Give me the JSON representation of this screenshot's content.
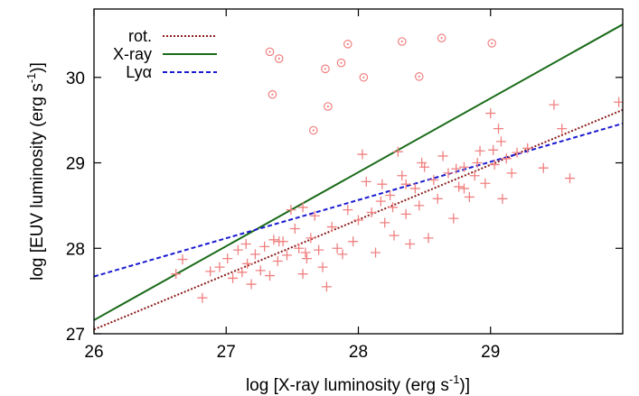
{
  "chart_data": {
    "type": "scatter",
    "xlabel_main": "log [X-ray luminosity (erg s",
    "xlabel_sup": "-1",
    "xlabel_tail": ")]",
    "ylabel_main": "log [EUV luminosity (erg s",
    "ylabel_sup": "-1",
    "ylabel_tail": ")]",
    "xlim": [
      26,
      30
    ],
    "ylim": [
      27,
      30.8
    ],
    "xticks": [
      {
        "value": 26,
        "label": "26"
      },
      {
        "value": 27,
        "label": "27"
      },
      {
        "value": 28,
        "label": "28"
      },
      {
        "value": 29,
        "label": "29"
      }
    ],
    "yticks": [
      {
        "value": 27,
        "label": "27"
      },
      {
        "value": 28,
        "label": "28"
      },
      {
        "value": 29,
        "label": "29"
      },
      {
        "value": 30,
        "label": "30"
      }
    ],
    "legend_position": "top-left",
    "lines": [
      {
        "name": "rot.",
        "color": "#8b1a1a",
        "dash": "dotted",
        "x": [
          26,
          30
        ],
        "y": [
          27.05,
          29.62
        ]
      },
      {
        "name": "X-ray",
        "color": "#1a6b1a",
        "dash": "solid",
        "x": [
          26,
          30
        ],
        "y": [
          27.16,
          30.62
        ]
      },
      {
        "name": "Lyα",
        "color": "#1a1ad0",
        "dash": "dashed",
        "x": [
          26,
          30
        ],
        "y": [
          27.67,
          29.46
        ]
      }
    ],
    "marker_color": "#f08080",
    "circle_points": [
      {
        "x": 27.33,
        "y": 30.3
      },
      {
        "x": 27.4,
        "y": 30.22
      },
      {
        "x": 27.35,
        "y": 29.8
      },
      {
        "x": 27.75,
        "y": 30.1
      },
      {
        "x": 27.87,
        "y": 30.17
      },
      {
        "x": 27.92,
        "y": 30.39
      },
      {
        "x": 28.04,
        "y": 30.0
      },
      {
        "x": 28.33,
        "y": 30.42
      },
      {
        "x": 28.46,
        "y": 30.01
      },
      {
        "x": 28.63,
        "y": 30.46
      },
      {
        "x": 29.01,
        "y": 30.4
      },
      {
        "x": 27.77,
        "y": 29.66
      },
      {
        "x": 27.66,
        "y": 29.38
      }
    ],
    "plus_points": [
      {
        "x": 26.62,
        "y": 27.7
      },
      {
        "x": 26.67,
        "y": 27.87
      },
      {
        "x": 26.82,
        "y": 27.42
      },
      {
        "x": 26.88,
        "y": 27.73
      },
      {
        "x": 26.95,
        "y": 27.78
      },
      {
        "x": 27.01,
        "y": 27.88
      },
      {
        "x": 27.05,
        "y": 27.65
      },
      {
        "x": 27.09,
        "y": 27.98
      },
      {
        "x": 27.12,
        "y": 27.72
      },
      {
        "x": 27.16,
        "y": 27.82
      },
      {
        "x": 27.19,
        "y": 27.58
      },
      {
        "x": 27.22,
        "y": 27.93
      },
      {
        "x": 27.26,
        "y": 27.74
      },
      {
        "x": 27.29,
        "y": 28.02
      },
      {
        "x": 27.33,
        "y": 27.68
      },
      {
        "x": 27.36,
        "y": 28.1
      },
      {
        "x": 27.39,
        "y": 27.85
      },
      {
        "x": 27.43,
        "y": 28.08
      },
      {
        "x": 27.46,
        "y": 27.92
      },
      {
        "x": 27.49,
        "y": 28.45
      },
      {
        "x": 27.52,
        "y": 28.23
      },
      {
        "x": 27.55,
        "y": 28.0
      },
      {
        "x": 27.58,
        "y": 27.7
      },
      {
        "x": 27.61,
        "y": 27.88
      },
      {
        "x": 27.64,
        "y": 28.12
      },
      {
        "x": 27.67,
        "y": 28.38
      },
      {
        "x": 27.7,
        "y": 27.98
      },
      {
        "x": 27.73,
        "y": 27.78
      },
      {
        "x": 27.76,
        "y": 27.55
      },
      {
        "x": 27.8,
        "y": 28.25
      },
      {
        "x": 27.84,
        "y": 28.0
      },
      {
        "x": 27.88,
        "y": 27.93
      },
      {
        "x": 27.92,
        "y": 28.45
      },
      {
        "x": 27.96,
        "y": 28.08
      },
      {
        "x": 28.0,
        "y": 28.33
      },
      {
        "x": 28.03,
        "y": 29.1
      },
      {
        "x": 28.06,
        "y": 28.78
      },
      {
        "x": 28.1,
        "y": 28.42
      },
      {
        "x": 28.13,
        "y": 27.95
      },
      {
        "x": 28.17,
        "y": 28.55
      },
      {
        "x": 28.2,
        "y": 28.3
      },
      {
        "x": 28.24,
        "y": 28.62
      },
      {
        "x": 28.27,
        "y": 28.15
      },
      {
        "x": 28.3,
        "y": 29.13
      },
      {
        "x": 28.33,
        "y": 28.85
      },
      {
        "x": 28.36,
        "y": 28.4
      },
      {
        "x": 28.39,
        "y": 28.05
      },
      {
        "x": 28.43,
        "y": 28.7
      },
      {
        "x": 28.46,
        "y": 28.5
      },
      {
        "x": 28.5,
        "y": 28.95
      },
      {
        "x": 28.53,
        "y": 28.12
      },
      {
        "x": 28.57,
        "y": 28.8
      },
      {
        "x": 28.6,
        "y": 28.58
      },
      {
        "x": 28.64,
        "y": 29.08
      },
      {
        "x": 28.68,
        "y": 28.88
      },
      {
        "x": 28.72,
        "y": 28.35
      },
      {
        "x": 28.76,
        "y": 28.72
      },
      {
        "x": 28.8,
        "y": 28.95
      },
      {
        "x": 28.84,
        "y": 28.6
      },
      {
        "x": 28.88,
        "y": 28.85
      },
      {
        "x": 28.92,
        "y": 29.14
      },
      {
        "x": 28.96,
        "y": 28.76
      },
      {
        "x": 29.0,
        "y": 29.58
      },
      {
        "x": 29.03,
        "y": 28.98
      },
      {
        "x": 29.06,
        "y": 29.4
      },
      {
        "x": 29.09,
        "y": 28.58
      },
      {
        "x": 29.12,
        "y": 29.05
      },
      {
        "x": 29.16,
        "y": 28.88
      },
      {
        "x": 29.2,
        "y": 29.12
      },
      {
        "x": 29.28,
        "y": 29.17
      },
      {
        "x": 29.4,
        "y": 28.94
      },
      {
        "x": 29.48,
        "y": 29.68
      },
      {
        "x": 29.54,
        "y": 29.4
      },
      {
        "x": 29.6,
        "y": 28.82
      },
      {
        "x": 29.97,
        "y": 29.71
      },
      {
        "x": 27.58,
        "y": 28.48
      },
      {
        "x": 27.4,
        "y": 28.08
      },
      {
        "x": 28.26,
        "y": 28.48
      },
      {
        "x": 28.18,
        "y": 28.75
      },
      {
        "x": 28.36,
        "y": 28.75
      },
      {
        "x": 28.48,
        "y": 29.0
      },
      {
        "x": 28.9,
        "y": 29.0
      },
      {
        "x": 29.02,
        "y": 29.15
      },
      {
        "x": 28.8,
        "y": 28.7
      },
      {
        "x": 27.15,
        "y": 28.05
      },
      {
        "x": 27.6,
        "y": 27.95
      },
      {
        "x": 28.74,
        "y": 28.93
      },
      {
        "x": 29.08,
        "y": 29.25
      }
    ]
  }
}
